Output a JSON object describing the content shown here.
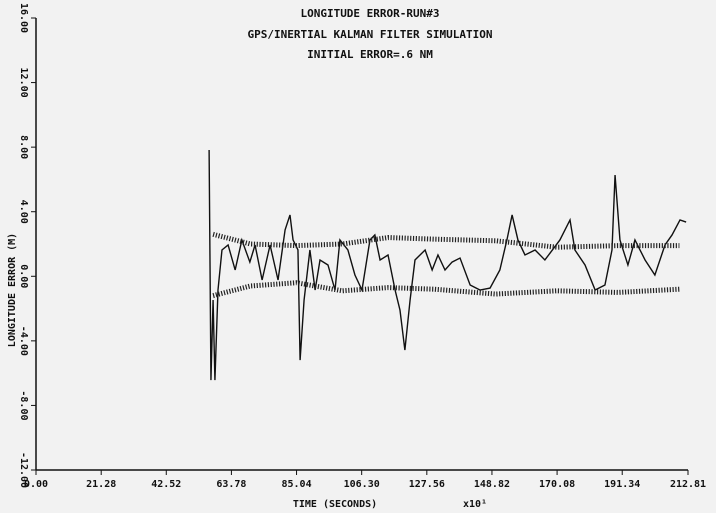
{
  "chart_data": {
    "type": "line",
    "title": "LONGITUDE ERROR-RUN#3",
    "subtitle": "GPS/INERTIAL KALMAN FILTER SIMULATION",
    "annotation": "INITIAL ERROR=.6 NM",
    "x_label": "TIME (SECONDS)",
    "x_multiplier": "x10¹",
    "y_label": "LONGITUDE ERROR (M)",
    "xlim": [
      0,
      212.81
    ],
    "ylim": [
      -12,
      16
    ],
    "xticks": [
      {
        "value": 0,
        "label": "0.00"
      },
      21.28,
      42.52,
      63.78,
      85.04,
      {
        "value": 106.3,
        "label": "106.30"
      },
      127.56,
      148.82,
      170.08,
      191.34,
      212.81
    ],
    "yticks": [
      {
        "value": -12,
        "label": "-12.00"
      },
      {
        "value": -8,
        "label": "-8.00"
      },
      {
        "value": -4,
        "label": "-4.00"
      },
      {
        "value": 0,
        "label": "0.00"
      },
      {
        "value": 4,
        "label": "4.00"
      },
      {
        "value": 8,
        "label": "8.00"
      },
      {
        "value": 12,
        "label": "12.00"
      },
      {
        "value": 16,
        "label": "16.00"
      }
    ],
    "series": [
      {
        "color": "#111111",
        "style": "solid",
        "x": [
          56.5,
          57.1,
          57.8,
          58.4,
          59.4,
          60.7,
          62.7,
          65.0,
          67.2,
          69.8,
          71.5,
          73.8,
          76.4,
          79.0,
          81.3,
          82.9,
          83.9,
          85.5,
          86.2,
          87.5,
          89.4,
          91.1,
          92.7,
          95.3,
          97.6,
          99.2,
          101.8,
          104.1,
          106.4,
          109.0,
          110.6,
          112.3,
          114.9,
          117.2,
          118.8,
          120.4,
          122.1,
          123.7,
          127.0,
          129.3,
          131.2,
          133.5,
          135.8,
          138.4,
          141.7,
          144.9,
          148.2,
          151.4,
          153.7,
          155.4,
          157.3,
          159.6,
          162.9,
          166.1,
          171.0,
          174.3,
          175.9,
          179.2,
          182.5,
          185.7,
          188.0,
          189.0,
          190.6,
          193.2,
          195.5,
          198.8,
          202.0,
          205.3,
          207.6,
          210.2,
          212.2
        ],
        "values": [
          7.82,
          -6.43,
          -1.47,
          -6.43,
          -0.85,
          1.63,
          1.94,
          0.39,
          2.25,
          0.88,
          1.94,
          -0.23,
          1.94,
          -0.23,
          2.87,
          3.8,
          2.25,
          1.63,
          -5.19,
          -1.47,
          1.63,
          -0.85,
          1.01,
          0.7,
          -0.85,
          2.25,
          1.63,
          0.08,
          -0.85,
          2.25,
          2.56,
          1.01,
          1.32,
          -0.85,
          -2.09,
          -4.57,
          -1.47,
          1.01,
          1.63,
          0.39,
          1.32,
          0.39,
          0.88,
          1.13,
          -0.54,
          -0.85,
          -0.73,
          0.39,
          2.25,
          3.8,
          2.25,
          1.32,
          1.63,
          1.01,
          2.25,
          3.49,
          1.63,
          0.7,
          -0.85,
          -0.54,
          1.63,
          6.27,
          2.25,
          0.7,
          2.25,
          1.01,
          0.08,
          1.94,
          2.56,
          3.49,
          3.36
        ]
      },
      {
        "color": "#222222",
        "style": "hatched",
        "x": [
          57.8,
          70,
          85,
          100,
          115,
          130,
          150,
          170,
          190,
          210
        ],
        "values": [
          2.6,
          2.0,
          1.9,
          2.0,
          2.4,
          2.3,
          2.2,
          1.8,
          1.9,
          1.9
        ]
      },
      {
        "color": "#222222",
        "style": "hatched",
        "x": [
          57.8,
          70,
          85,
          100,
          115,
          130,
          150,
          170,
          190,
          210
        ],
        "values": [
          -1.2,
          -0.6,
          -0.4,
          -0.9,
          -0.7,
          -0.8,
          -1.1,
          -0.9,
          -1.0,
          -0.8
        ]
      }
    ]
  }
}
